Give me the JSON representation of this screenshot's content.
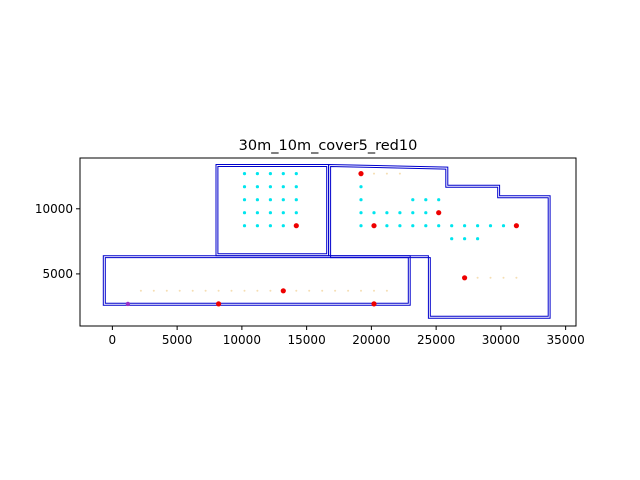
{
  "chart_data": {
    "type": "scatter",
    "title": "30m_10m_cover5_red10",
    "xlabel": "",
    "ylabel": "",
    "xlim": [
      -2500,
      35800
    ],
    "ylim": [
      1000,
      13900
    ],
    "xticks": [
      0,
      5000,
      10000,
      15000,
      20000,
      25000,
      30000,
      35000
    ],
    "yticks": [
      5000,
      10000
    ],
    "tick_labels_x": [
      "0",
      "5000",
      "10000",
      "15000",
      "20000",
      "25000",
      "30000",
      "35000"
    ],
    "tick_labels_y": [
      "5000",
      "10000"
    ],
    "grid": false,
    "legend": "none",
    "colors": {
      "outline": "#0000cc",
      "cyan": "#00e5ee",
      "red": "#ee0000",
      "purple": "#9b30c8",
      "faint": "#f5deb3",
      "axis": "#000000"
    },
    "outlines": [
      {
        "points": [
          [
            -700,
            6400
          ],
          [
            23000,
            6400
          ],
          [
            23000,
            2600
          ],
          [
            -700,
            2600
          ]
        ]
      },
      {
        "points": [
          [
            -550,
            6250
          ],
          [
            22850,
            6250
          ],
          [
            22850,
            2750
          ],
          [
            -550,
            2750
          ]
        ]
      },
      {
        "points": [
          [
            8000,
            13400
          ],
          [
            16700,
            13400
          ],
          [
            16700,
            6400
          ],
          [
            8000,
            6400
          ]
        ]
      },
      {
        "points": [
          [
            8150,
            13250
          ],
          [
            16550,
            13250
          ],
          [
            16550,
            6550
          ],
          [
            8150,
            6550
          ]
        ]
      },
      {
        "points": [
          [
            16700,
            13400
          ],
          [
            25900,
            13200
          ],
          [
            25900,
            11800
          ],
          [
            29900,
            11800
          ],
          [
            29900,
            11000
          ],
          [
            33800,
            11000
          ],
          [
            33800,
            1600
          ],
          [
            24400,
            1600
          ],
          [
            24400,
            6400
          ],
          [
            22900,
            6400
          ],
          [
            22900,
            6400
          ],
          [
            16700,
            6400
          ]
        ]
      },
      {
        "points": [
          [
            16850,
            13250
          ],
          [
            25750,
            13050
          ],
          [
            25750,
            11650
          ],
          [
            29750,
            11650
          ],
          [
            29750,
            10850
          ],
          [
            33650,
            10850
          ],
          [
            33650,
            1750
          ],
          [
            24550,
            1750
          ],
          [
            24550,
            6250
          ],
          [
            23050,
            6250
          ],
          [
            23050,
            6250
          ],
          [
            16850,
            6250
          ]
        ]
      }
    ],
    "series": [
      {
        "color": "cyan",
        "size": 1.6,
        "points": [
          [
            10200,
            12700
          ],
          [
            11200,
            12700
          ],
          [
            12200,
            12700
          ],
          [
            13200,
            12700
          ],
          [
            14200,
            12700
          ],
          [
            10200,
            11700
          ],
          [
            11200,
            11700
          ],
          [
            12200,
            11700
          ],
          [
            13200,
            11700
          ],
          [
            14200,
            11700
          ],
          [
            10200,
            10700
          ],
          [
            11200,
            10700
          ],
          [
            12200,
            10700
          ],
          [
            13200,
            10700
          ],
          [
            14200,
            10700
          ],
          [
            10200,
            9700
          ],
          [
            11200,
            9700
          ],
          [
            12200,
            9700
          ],
          [
            13200,
            9700
          ],
          [
            14200,
            9700
          ],
          [
            10200,
            8700
          ],
          [
            11200,
            8700
          ],
          [
            12200,
            8700
          ],
          [
            13200,
            8700
          ],
          [
            19200,
            11700
          ],
          [
            19200,
            10700
          ],
          [
            19200,
            9700
          ],
          [
            19200,
            8700
          ],
          [
            20200,
            9700
          ],
          [
            21200,
            9700
          ],
          [
            22200,
            9700
          ],
          [
            23200,
            9700
          ],
          [
            24200,
            9700
          ],
          [
            23200,
            10700
          ],
          [
            24200,
            10700
          ],
          [
            25200,
            10700
          ],
          [
            21200,
            8700
          ],
          [
            22200,
            8700
          ],
          [
            23200,
            8700
          ],
          [
            24200,
            8700
          ],
          [
            25200,
            8700
          ],
          [
            26200,
            8700
          ],
          [
            27200,
            8700
          ],
          [
            28200,
            8700
          ],
          [
            29200,
            8700
          ],
          [
            30200,
            8700
          ],
          [
            26200,
            7700
          ],
          [
            27200,
            7700
          ],
          [
            28200,
            7700
          ]
        ]
      },
      {
        "color": "red",
        "size": 2.6,
        "points": [
          [
            19200,
            12700
          ],
          [
            14200,
            8700
          ],
          [
            20200,
            8700
          ],
          [
            25200,
            9700
          ],
          [
            31200,
            8700
          ],
          [
            27200,
            4700
          ],
          [
            13200,
            3700
          ],
          [
            8200,
            2700
          ],
          [
            20200,
            2700
          ]
        ]
      },
      {
        "color": "purple",
        "size": 2.2,
        "points": [
          [
            1200,
            2700
          ]
        ]
      },
      {
        "color": "faint",
        "size": 1.0,
        "points": [
          [
            2200,
            3700
          ],
          [
            3200,
            3700
          ],
          [
            4200,
            3700
          ],
          [
            5200,
            3700
          ],
          [
            6200,
            3700
          ],
          [
            7200,
            3700
          ],
          [
            8200,
            3700
          ],
          [
            9200,
            3700
          ],
          [
            10200,
            3700
          ],
          [
            11200,
            3700
          ],
          [
            12200,
            3700
          ],
          [
            14200,
            3700
          ],
          [
            15200,
            3700
          ],
          [
            16200,
            3700
          ],
          [
            17200,
            3700
          ],
          [
            18200,
            3700
          ],
          [
            19200,
            3700
          ],
          [
            20200,
            3700
          ],
          [
            21200,
            3700
          ],
          [
            28200,
            4700
          ],
          [
            29200,
            4700
          ],
          [
            30200,
            4700
          ],
          [
            31200,
            4700
          ],
          [
            20200,
            12700
          ],
          [
            21200,
            12700
          ],
          [
            22200,
            12700
          ]
        ]
      }
    ]
  }
}
